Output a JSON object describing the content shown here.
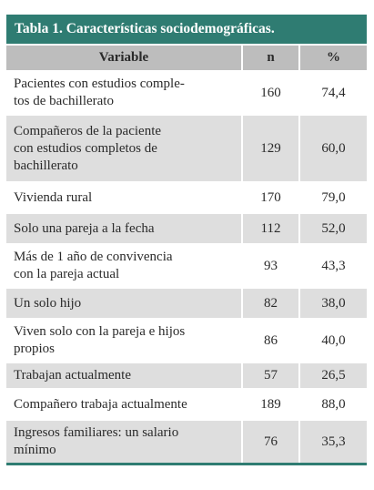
{
  "table": {
    "title": "Tabla 1. Características sociodemográficas.",
    "headers": [
      "Variable",
      "n",
      "%"
    ],
    "rows": [
      {
        "variable": "Pacientes con estudios comple-tos de bachillerato",
        "lines": [
          "Pacientes con estudios comple-",
          "tos de bachillerato"
        ],
        "n": "160",
        "pct": "74,4"
      },
      {
        "variable": "Compañeros de la paciente con estudios completos de bachillerato",
        "lines": [
          "Compañeros de la paciente",
          "con estudios completos de",
          "bachillerato"
        ],
        "n": "129",
        "pct": "60,0"
      },
      {
        "variable": "Vivienda rural",
        "lines": [
          "Vivienda rural"
        ],
        "n": "170",
        "pct": "79,0"
      },
      {
        "variable": "Solo una pareja a la fecha",
        "lines": [
          "Solo una pareja a la fecha"
        ],
        "n": "112",
        "pct": "52,0"
      },
      {
        "variable": "Más de 1 año de convivencia con la pareja actual",
        "lines": [
          "Más de 1 año de convivencia",
          "con la pareja actual"
        ],
        "n": "93",
        "pct": "43,3"
      },
      {
        "variable": "Un solo hijo",
        "lines": [
          "Un solo hijo"
        ],
        "n": "82",
        "pct": "38,0"
      },
      {
        "variable": "Viven solo con la pareja e hijos propios",
        "lines": [
          "Viven solo con la pareja e hijos",
          "propios"
        ],
        "n": "86",
        "pct": "40,0"
      },
      {
        "variable": "Trabajan actualmente",
        "lines": [
          "Trabajan actualmente"
        ],
        "n": "57",
        "pct": "26,5"
      },
      {
        "variable": "Compañero trabaja actualmente",
        "lines": [
          "Compañero trabaja actualmente"
        ],
        "n": "189",
        "pct": "88,0"
      },
      {
        "variable": "Ingresos familiares: un salario mínimo",
        "lines": [
          "Ingresos familiares: un salario",
          "mínimo"
        ],
        "n": "76",
        "pct": "35,3"
      }
    ]
  },
  "colors": {
    "title_bar": "#2f7c72",
    "header_row": "#bdbdbd",
    "stripe": "#dedede"
  }
}
